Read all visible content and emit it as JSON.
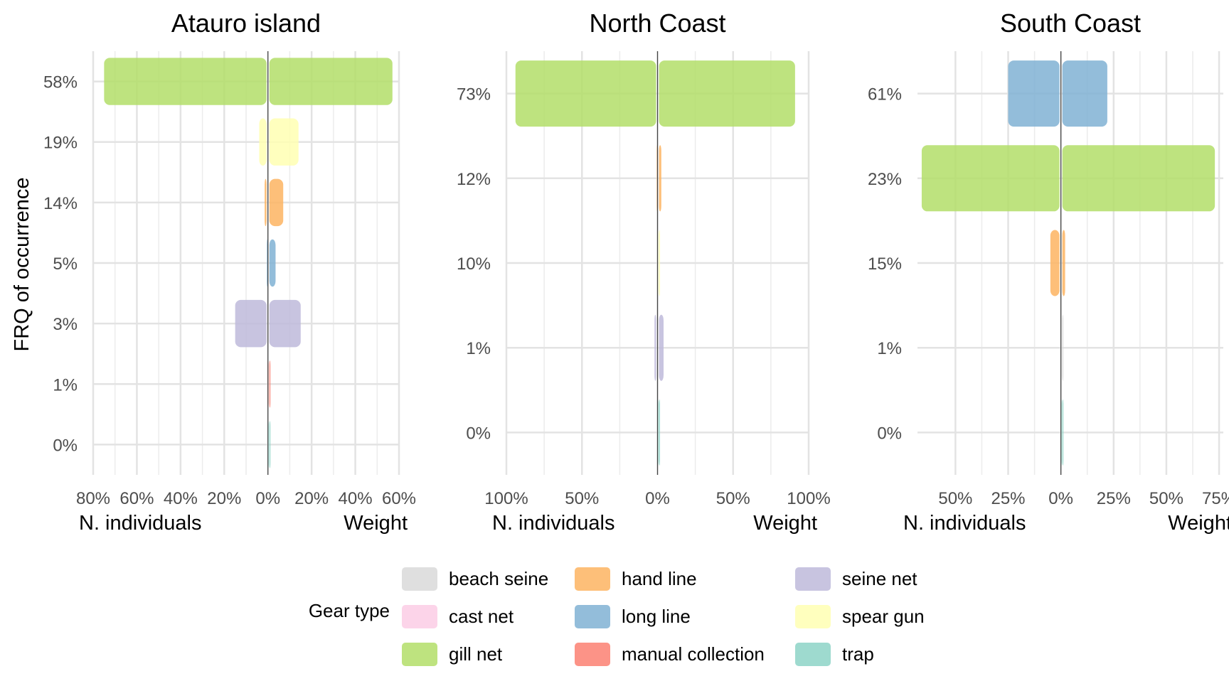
{
  "figure": {
    "ylabel": "FRQ of occurrence",
    "legend_title": "Gear type"
  },
  "legend": {
    "items": [
      {
        "name": "beach seine",
        "color": "#d9d9d9"
      },
      {
        "name": "cast net",
        "color": "#fccde5"
      },
      {
        "name": "gill net",
        "color": "#b3de69"
      },
      {
        "name": "hand line",
        "color": "#fdb462"
      },
      {
        "name": "long line",
        "color": "#80b1d3"
      },
      {
        "name": "manual collection",
        "color": "#fb8072"
      },
      {
        "name": "seine net",
        "color": "#bebada"
      },
      {
        "name": "spear gun",
        "color": "#ffffb3"
      },
      {
        "name": "trap",
        "color": "#8dd3c7"
      }
    ]
  },
  "chart_data": [
    {
      "type": "bar",
      "title": "Atauro island",
      "xlabel_left": "N. individuals",
      "xlabel_right": "Weight",
      "xlim": [
        -80,
        60
      ],
      "xticks": [
        -80,
        -60,
        -40,
        -20,
        0,
        20,
        40,
        60
      ],
      "xtick_labels": [
        "80%",
        "60%",
        "40%",
        "20%",
        "0%",
        "20%",
        "40%",
        "60%"
      ],
      "categories": [
        "58%",
        "19%",
        "14%",
        "5%",
        "3%",
        "1%",
        "0%"
      ],
      "bars": [
        {
          "category": "58%",
          "gear": "gill net",
          "n_individuals": 75,
          "weight": 57
        },
        {
          "category": "19%",
          "gear": "spear gun",
          "n_individuals": 4,
          "weight": 14
        },
        {
          "category": "14%",
          "gear": "hand line",
          "n_individuals": 1.5,
          "weight": 7
        },
        {
          "category": "5%",
          "gear": "long line",
          "n_individuals": 0.5,
          "weight": 3.5
        },
        {
          "category": "3%",
          "gear": "seine net",
          "n_individuals": 15,
          "weight": 15
        },
        {
          "category": "1%",
          "gear": "manual collection",
          "n_individuals": 0.2,
          "weight": 0.2
        },
        {
          "category": "0%",
          "gear": "trap",
          "n_individuals": 0.1,
          "weight": 0.1
        }
      ]
    },
    {
      "type": "bar",
      "title": "North Coast",
      "xlabel_left": "N. individuals",
      "xlabel_right": "Weight",
      "xlim": [
        -100,
        100
      ],
      "xticks": [
        -100,
        -50,
        0,
        50,
        100
      ],
      "xtick_labels": [
        "100%",
        "50%",
        "0%",
        "50%",
        "100%"
      ],
      "categories": [
        "73%",
        "12%",
        "10%",
        "1%",
        "0%"
      ],
      "bars": [
        {
          "category": "73%",
          "gear": "gill net",
          "n_individuals": 94,
          "weight": 91
        },
        {
          "category": "12%",
          "gear": "hand line",
          "n_individuals": 0.5,
          "weight": 2.5
        },
        {
          "category": "10%",
          "gear": "spear gun",
          "n_individuals": 0.2,
          "weight": 0.5
        },
        {
          "category": "1%",
          "gear": "seine net",
          "n_individuals": 2,
          "weight": 4
        },
        {
          "category": "0%",
          "gear": "trap",
          "n_individuals": 0.1,
          "weight": 0.1
        }
      ]
    },
    {
      "type": "bar",
      "title": "South Coast",
      "xlabel_left": "N. individuals",
      "xlabel_right": "Weight",
      "xlim": [
        -68,
        77
      ],
      "xticks": [
        -50,
        -25,
        0,
        25,
        50,
        75
      ],
      "xtick_labels": [
        "50%",
        "25%",
        "0%",
        "25%",
        "50%",
        "75%"
      ],
      "categories": [
        "61%",
        "23%",
        "15%",
        "1%",
        "0%"
      ],
      "bars": [
        {
          "category": "61%",
          "gear": "long line",
          "n_individuals": 25,
          "weight": 22
        },
        {
          "category": "23%",
          "gear": "gill net",
          "n_individuals": 66,
          "weight": 73
        },
        {
          "category": "15%",
          "gear": "hand line",
          "n_individuals": 5,
          "weight": 2
        },
        {
          "category": "1%",
          "gear": "beach seine",
          "n_individuals": 0.2,
          "weight": 0.2
        },
        {
          "category": "0%",
          "gear": "trap",
          "n_individuals": 0.1,
          "weight": 0.1
        }
      ]
    }
  ]
}
